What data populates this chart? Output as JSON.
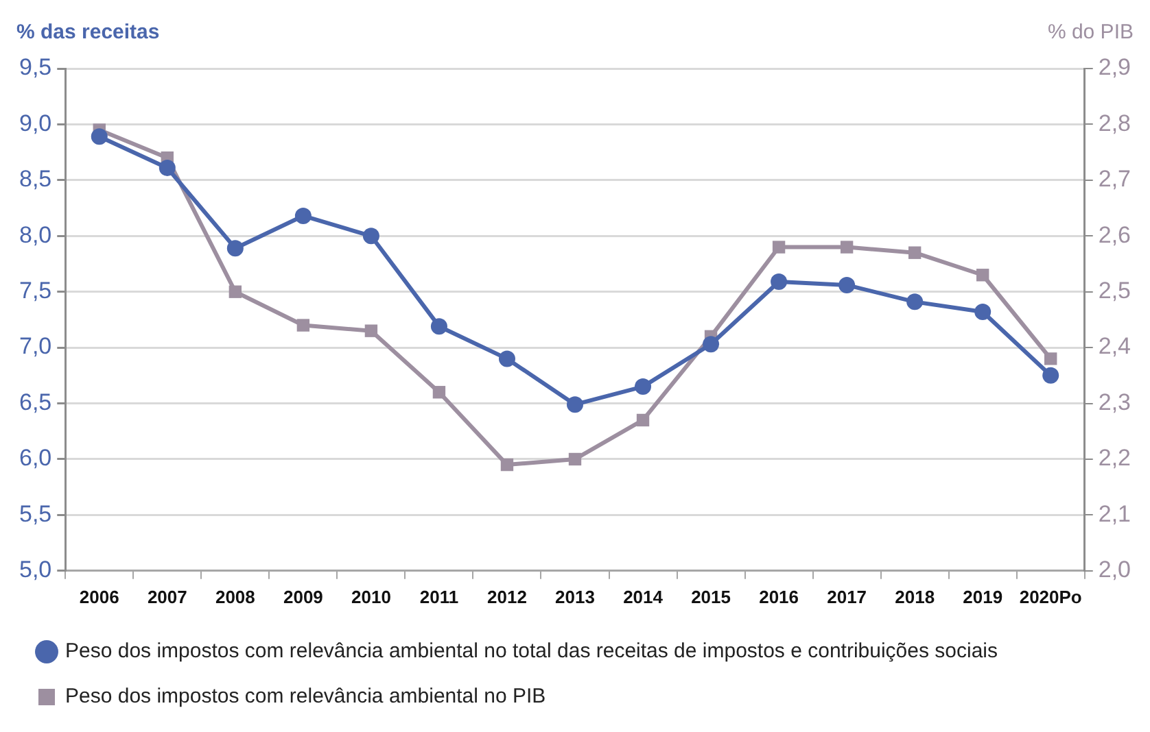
{
  "chart_data": {
    "type": "line",
    "ylabel": "% das receitas",
    "y2label": "% do PIB",
    "categories": [
      "2006",
      "2007",
      "2008",
      "2009",
      "2010",
      "2011",
      "2012",
      "2013",
      "2014",
      "2015",
      "2016",
      "2017",
      "2018",
      "2019",
      "2020Po"
    ],
    "series": [
      {
        "name": "Peso dos impostos com relevância ambiental no total das receitas de impostos e contribuições sociais",
        "color": "#4a66ac",
        "marker": "circle",
        "values": [
          8.89,
          8.61,
          7.89,
          8.18,
          8.0,
          7.19,
          6.9,
          6.49,
          6.65,
          7.03,
          7.59,
          7.56,
          7.41,
          7.32,
          6.75
        ]
      },
      {
        "name": "Peso dos impostos com relevância ambiental no PIB",
        "color": "#9d8fa0",
        "marker": "square",
        "axis": "y2",
        "values": [
          2.79,
          2.74,
          2.5,
          2.44,
          2.43,
          2.32,
          2.19,
          2.2,
          2.27,
          2.42,
          2.58,
          2.58,
          2.57,
          2.53,
          2.38
        ]
      }
    ],
    "ylim": [
      5,
      9.5
    ],
    "yticks": [
      {
        "value": 5,
        "label": "5,0"
      },
      {
        "value": 5.5,
        "label": "5,5"
      },
      {
        "value": 6,
        "label": "6,0"
      },
      {
        "value": 6.5,
        "label": "6,5"
      },
      {
        "value": 7,
        "label": "7,0"
      },
      {
        "value": 7.5,
        "label": "7,5"
      },
      {
        "value": 8,
        "label": "8,0"
      },
      {
        "value": 8.5,
        "label": "8,5"
      },
      {
        "value": 9,
        "label": "9,0"
      },
      {
        "value": 9.5,
        "label": "9,5"
      }
    ],
    "y2lim": [
      2,
      2.9
    ],
    "y2ticks": [
      {
        "value": 2,
        "label": "2,0"
      },
      {
        "value": 2.1,
        "label": "2,1"
      },
      {
        "value": 2.2,
        "label": "2,2"
      },
      {
        "value": 2.3,
        "label": "2,3"
      },
      {
        "value": 2.4,
        "label": "2,4"
      },
      {
        "value": 2.5,
        "label": "2,5"
      },
      {
        "value": 2.6,
        "label": "2,6"
      },
      {
        "value": 2.7,
        "label": "2,7"
      },
      {
        "value": 2.8,
        "label": "2,8"
      },
      {
        "value": 2.9,
        "label": "2,9"
      }
    ],
    "grid": "y",
    "legend": "bottom",
    "line_style": "solid"
  }
}
